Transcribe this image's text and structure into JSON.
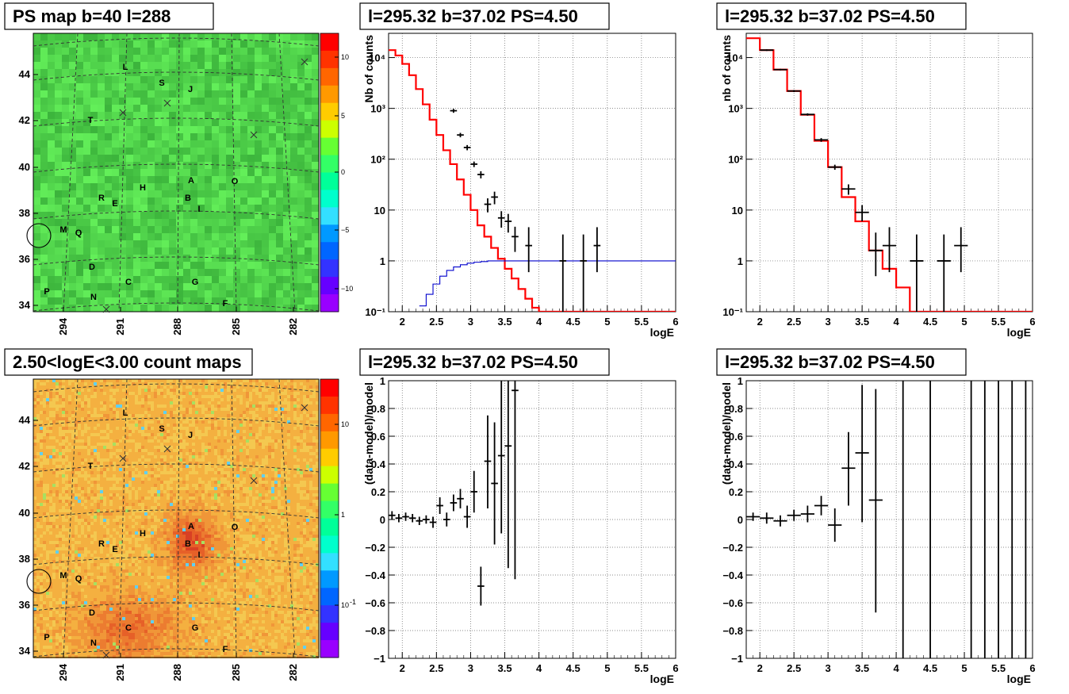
{
  "colors": {
    "model": "#ff0000",
    "acceptance": "#0000cc",
    "data": "#000000",
    "grid": "#555555"
  },
  "maps": [
    {
      "title": "PS map b=40 l=288",
      "kind": "ps",
      "colorbar_ticks": [
        "10",
        "5",
        "0",
        "−5",
        "−10"
      ]
    },
    {
      "title": "2.50<logE<3.00 count maps",
      "kind": "counts",
      "colorbar_ticks": [
        "10",
        "1",
        "10"
      ],
      "colorbar_exp": "-1"
    }
  ],
  "map_axes": {
    "y_ticks": [
      "44",
      "42",
      "40",
      "38",
      "36",
      "34"
    ],
    "x_ticks": [
      "294",
      "291",
      "288",
      "285",
      "282"
    ]
  },
  "sources": [
    {
      "name": "L"
    },
    {
      "name": "S"
    },
    {
      "name": "J"
    },
    {
      "name": "T"
    },
    {
      "name": "A"
    },
    {
      "name": "O"
    },
    {
      "name": "H"
    },
    {
      "name": "R"
    },
    {
      "name": "E"
    },
    {
      "name": "B"
    },
    {
      "name": "I"
    },
    {
      "name": "M"
    },
    {
      "name": "Q"
    },
    {
      "name": "D"
    },
    {
      "name": "C"
    },
    {
      "name": "G"
    },
    {
      "name": "P"
    },
    {
      "name": "N"
    },
    {
      "name": "F"
    }
  ],
  "chart_data": [
    {
      "type": "line",
      "title": "l=295.32 b=37.02 PS=4.50",
      "xlabel": "logE",
      "ylabel": "Nb of counts",
      "yscale": "log",
      "xlim": [
        1.8,
        6
      ],
      "ylim": [
        0.1,
        30000
      ],
      "x_ticks": [
        "2",
        "2.5",
        "3",
        "3.5",
        "4",
        "4.5",
        "5",
        "5.5",
        "6"
      ],
      "y_ticks": [
        "10⁴",
        "10³",
        "10²",
        "10",
        "1",
        "10⁻¹"
      ],
      "grid": true,
      "series": [
        {
          "style": "model-red",
          "edges": [
            1.8,
            1.9,
            2.0,
            2.1,
            2.2,
            2.3,
            2.4,
            2.5,
            2.6,
            2.7,
            2.8,
            2.9,
            3.0,
            3.1,
            3.2,
            3.3,
            3.4,
            3.5,
            3.6,
            3.7,
            3.8,
            3.9,
            4.0,
            6.0
          ],
          "values": [
            14000,
            11000,
            7500,
            4500,
            2400,
            1200,
            600,
            300,
            150,
            80,
            40,
            20,
            10,
            5,
            3,
            1.8,
            1.1,
            0.7,
            0.45,
            0.28,
            0.18,
            0.12,
            0.1
          ]
        },
        {
          "style": "acceptance-blue",
          "edges": [
            2.25,
            2.35,
            2.45,
            2.55,
            2.65,
            2.75,
            2.85,
            2.95,
            3.05,
            3.15,
            3.25,
            6.0
          ],
          "values": [
            0.13,
            0.22,
            0.35,
            0.5,
            0.65,
            0.76,
            0.84,
            0.9,
            0.94,
            0.97,
            1.0
          ]
        },
        {
          "style": "data-points",
          "x": [
            2.75,
            2.85,
            2.95,
            3.05,
            3.15,
            3.25,
            3.35,
            3.45,
            3.55,
            3.65,
            3.85,
            4.35,
            4.65,
            4.85
          ],
          "y": [
            900,
            300,
            170,
            80,
            50,
            13,
            18,
            7,
            6,
            3,
            2,
            1,
            1,
            2
          ],
          "lo": [
            820,
            270,
            150,
            70,
            42,
            9,
            13,
            4.5,
            3.6,
            1.5,
            0.6,
            0.1,
            0.1,
            0.6
          ],
          "hi": [
            980,
            330,
            190,
            90,
            58,
            17,
            23,
            9.5,
            8.4,
            4.7,
            4.6,
            3.3,
            3.3,
            4.6
          ],
          "xerr": [
            0.05,
            0.05,
            0.05,
            0.05,
            0.05,
            0.05,
            0.05,
            0.05,
            0.05,
            0.05,
            0.05,
            0.05,
            0.05,
            0.05
          ]
        }
      ]
    },
    {
      "type": "line",
      "title": "l=295.32 b=37.02 PS=4.50",
      "xlabel": "logE",
      "ylabel": "nb of counts",
      "yscale": "log",
      "xlim": [
        1.8,
        6
      ],
      "ylim": [
        0.1,
        30000
      ],
      "x_ticks": [
        "2",
        "2.5",
        "3",
        "3.5",
        "4",
        "4.5",
        "5",
        "5.5",
        "6"
      ],
      "y_ticks": [
        "10⁴",
        "10³",
        "10²",
        "10",
        "1",
        "10⁻¹"
      ],
      "grid": true,
      "series": [
        {
          "style": "model-red",
          "edges": [
            1.8,
            2.0,
            2.2,
            2.4,
            2.6,
            2.8,
            3.0,
            3.2,
            3.4,
            3.6,
            3.8,
            4.0,
            4.2,
            6.0
          ],
          "values": [
            24000,
            14000,
            5800,
            2200,
            750,
            230,
            70,
            18,
            6,
            1.6,
            0.7,
            0.3,
            0.1
          ],
          "emphasis": true
        },
        {
          "style": "data-points",
          "x": [
            2.1,
            2.3,
            2.5,
            2.7,
            2.9,
            3.1,
            3.3,
            3.5,
            3.7,
            3.9,
            4.3,
            4.7,
            4.95
          ],
          "y": [
            14000,
            5800,
            2200,
            760,
            240,
            70,
            26,
            9,
            1.6,
            2,
            1,
            1,
            2
          ],
          "lo": [
            13500,
            5600,
            2100,
            720,
            220,
            62,
            20,
            6,
            0.5,
            0.6,
            0.1,
            0.1,
            0.6
          ],
          "hi": [
            14500,
            6000,
            2300,
            800,
            260,
            78,
            32,
            12.5,
            3.6,
            4.6,
            3.3,
            3.3,
            4.6
          ],
          "xerr": [
            0.1,
            0.1,
            0.1,
            0.1,
            0.1,
            0.1,
            0.1,
            0.1,
            0.1,
            0.1,
            0.1,
            0.1,
            0.1
          ]
        }
      ]
    },
    {
      "type": "scatter",
      "title": "l=295.32 b=37.02 PS=4.50",
      "xlabel": "logE",
      "ylabel": "(data-model)/model",
      "xlim": [
        1.8,
        6
      ],
      "ylim": [
        -1,
        1
      ],
      "x_ticks": [
        "2",
        "2.5",
        "3",
        "3.5",
        "4",
        "4.5",
        "5",
        "5.5",
        "6"
      ],
      "y_ticks": [
        "1",
        "0.8",
        "0.6",
        "0.4",
        "0.2",
        "0",
        "−0.2",
        "−0.4",
        "−0.6",
        "−0.8",
        "−1"
      ],
      "grid": true,
      "series": [
        {
          "style": "data-points",
          "x": [
            1.85,
            1.95,
            2.05,
            2.15,
            2.25,
            2.35,
            2.45,
            2.55,
            2.65,
            2.75,
            2.85,
            2.95,
            3.05,
            3.15,
            3.25,
            3.35,
            3.45,
            3.55,
            3.65
          ],
          "y": [
            0.03,
            0.01,
            0.02,
            0.01,
            -0.01,
            0.0,
            -0.02,
            0.1,
            0.0,
            0.12,
            0.15,
            0.02,
            0.2,
            -0.48,
            0.42,
            0.26,
            0.46,
            0.53,
            0.93
          ],
          "lo": [
            0.0,
            -0.02,
            -0.01,
            -0.02,
            -0.04,
            -0.03,
            -0.06,
            0.04,
            -0.05,
            0.06,
            0.08,
            -0.06,
            0.05,
            -0.62,
            0.08,
            -0.18,
            -0.1,
            -0.35,
            -0.43
          ],
          "hi": [
            0.06,
            0.04,
            0.05,
            0.04,
            0.02,
            0.03,
            0.02,
            0.16,
            0.05,
            0.18,
            0.22,
            0.1,
            0.35,
            -0.34,
            0.75,
            0.7,
            1.0,
            1.0,
            1.0
          ],
          "xerr": [
            0.05,
            0.05,
            0.05,
            0.05,
            0.05,
            0.05,
            0.05,
            0.05,
            0.05,
            0.05,
            0.05,
            0.05,
            0.05,
            0.05,
            0.05,
            0.05,
            0.05,
            0.05,
            0.05
          ]
        }
      ]
    },
    {
      "type": "scatter",
      "title": "l=295.32 b=37.02 PS=4.50",
      "xlabel": "logE",
      "ylabel": "(data-model)/model",
      "xlim": [
        1.8,
        6
      ],
      "ylim": [
        -1,
        1
      ],
      "x_ticks": [
        "2",
        "2.5",
        "3",
        "3.5",
        "4",
        "4.5",
        "5",
        "5.5",
        "6"
      ],
      "y_ticks": [
        "1",
        "0.8",
        "0.6",
        "0.4",
        "0.2",
        "0",
        "−0.2",
        "−0.4",
        "−0.6",
        "−0.8",
        "−1"
      ],
      "grid": true,
      "series": [
        {
          "style": "data-points",
          "x": [
            1.9,
            2.1,
            2.3,
            2.5,
            2.7,
            2.9,
            3.1,
            3.3,
            3.5,
            3.7,
            4.1,
            4.5,
            5.1,
            5.3,
            5.5,
            5.7,
            5.9
          ],
          "y": [
            0.02,
            0.01,
            -0.01,
            0.03,
            0.04,
            0.1,
            -0.04,
            0.37,
            0.48,
            0.14,
            0.0,
            0.0,
            0.0,
            0.0,
            0.0,
            0.0,
            0.0
          ],
          "lo": [
            -0.01,
            -0.03,
            -0.05,
            -0.01,
            -0.02,
            0.03,
            -0.16,
            0.1,
            -0.02,
            -0.67,
            -1.0,
            -1.0,
            -1.0,
            -1.0,
            -1.0,
            -1.0,
            -1.0
          ],
          "hi": [
            0.05,
            0.05,
            0.03,
            0.07,
            0.1,
            0.17,
            0.08,
            0.63,
            0.97,
            0.94,
            1.0,
            1.0,
            1.0,
            1.0,
            1.0,
            1.0,
            1.0
          ],
          "xerr": [
            0.1,
            0.1,
            0.1,
            0.1,
            0.1,
            0.1,
            0.1,
            0.1,
            0.1,
            0.1,
            0.0,
            0.0,
            0.0,
            0.0,
            0.0,
            0.0,
            0.0
          ]
        }
      ]
    }
  ]
}
